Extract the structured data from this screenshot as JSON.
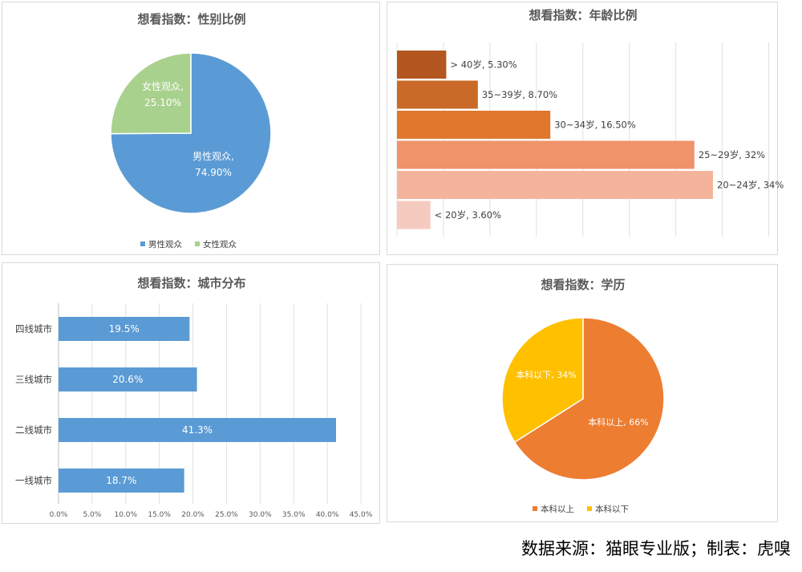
{
  "footer": "数据来源：猫眼专业版；制表：虎嗅",
  "chart_data": [
    {
      "type": "pie",
      "title": "想看指数：性别比例",
      "slices": [
        {
          "name": "男性观众",
          "value": 74.9,
          "label": "男性观众,",
          "pct": "74.90%",
          "color": "#5b9bd5"
        },
        {
          "name": "女性观众",
          "value": 25.1,
          "label": "女性观众,",
          "pct": "25.10%",
          "color": "#a9d18e"
        }
      ],
      "legend": [
        "男性观众",
        "女性观众"
      ],
      "legend_position": "bottom"
    },
    {
      "type": "bar",
      "orientation": "horizontal",
      "title": "想看指数：年龄比例",
      "categories": [
        "> 40岁",
        "35~39岁",
        "30~34岁",
        "25~29岁",
        "20~24岁",
        "< 20岁"
      ],
      "values": [
        5.3,
        8.7,
        16.5,
        32,
        34,
        3.6
      ],
      "labels": [
        "> 40岁, 5.30%",
        "35~39岁, 8.70%",
        "30~34岁, 16.50%",
        "25~29岁, 32%",
        "20~24岁, 34%",
        "< 20岁, 3.60%"
      ],
      "colors": [
        "#b4561f",
        "#c96a28",
        "#e0772d",
        "#f0926a",
        "#f4b49b",
        "#f6cbbf"
      ],
      "xlim": [
        0,
        40
      ],
      "grid": true
    },
    {
      "type": "bar",
      "orientation": "horizontal",
      "title": "想看指数：城市分布",
      "categories": [
        "四线城市",
        "三线城市",
        "二线城市",
        "一线城市"
      ],
      "values": [
        19.5,
        20.6,
        41.3,
        18.7
      ],
      "labels": [
        "19.5%",
        "20.6%",
        "41.3%",
        "18.7%"
      ],
      "color": "#5b9bd5",
      "xticks": [
        "0.0%",
        "5.0%",
        "10.0%",
        "15.0%",
        "20.0%",
        "25.0%",
        "30.0%",
        "35.0%",
        "40.0%",
        "45.0%"
      ],
      "xlim": [
        0,
        45
      ],
      "grid": true
    },
    {
      "type": "pie",
      "title": "想看指数：学历",
      "slices": [
        {
          "name": "本科以上",
          "value": 66,
          "label": "本科以上, 66%",
          "color": "#ed7d31"
        },
        {
          "name": "本科以下",
          "value": 34,
          "label": "本科以下, 34%",
          "color": "#ffc000"
        }
      ],
      "legend": [
        "本科以上",
        "本科以下"
      ],
      "legend_position": "bottom"
    }
  ]
}
